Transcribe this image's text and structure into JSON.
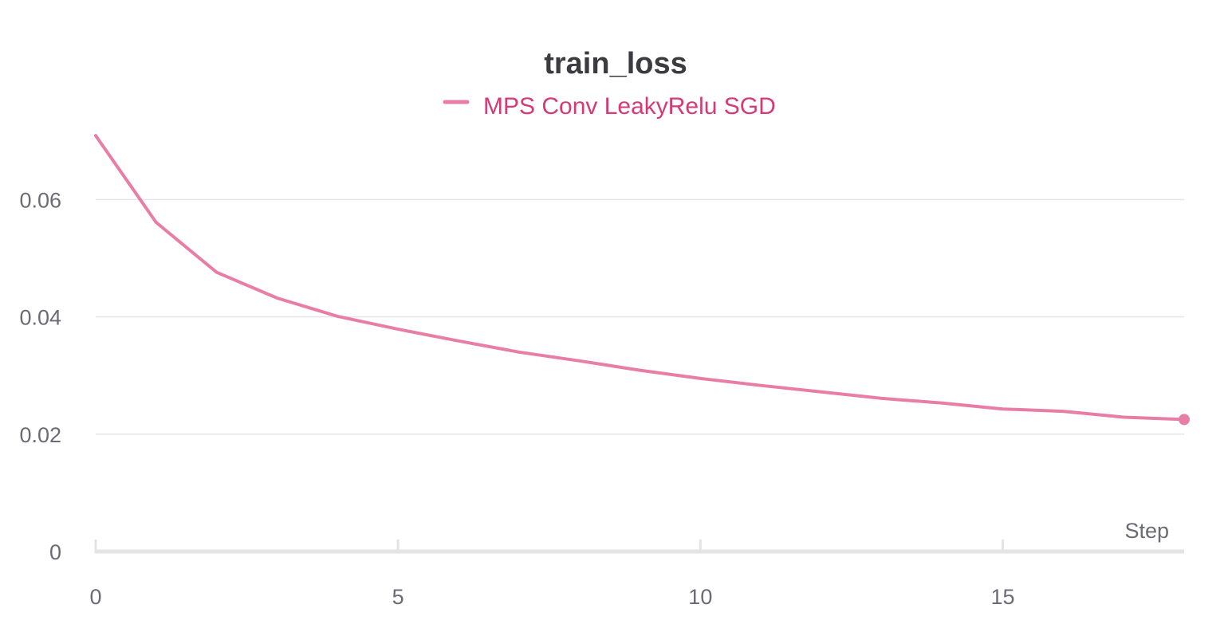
{
  "chart_data": {
    "type": "line",
    "title": "train_loss",
    "xlabel": "Step",
    "ylabel": "",
    "xlim": [
      0,
      18
    ],
    "ylim": [
      0,
      0.074
    ],
    "x_ticks": [
      0,
      5,
      10,
      15
    ],
    "x_tick_labels": [
      "0",
      "5",
      "10",
      "15"
    ],
    "y_ticks": [
      0,
      0.02,
      0.04,
      0.06
    ],
    "y_tick_labels": [
      "0",
      "0.02",
      "0.04",
      "0.06"
    ],
    "grid": true,
    "legend_position": "top-center",
    "series": [
      {
        "name": "MPS Conv LeakyRelu SGD",
        "color": "#e87da6",
        "label_color": "#d63a75",
        "x": [
          0,
          1,
          2,
          3,
          4,
          5,
          6,
          7,
          8,
          9,
          10,
          11,
          12,
          13,
          14,
          15,
          16,
          17,
          18
        ],
        "y": [
          0.0709,
          0.0561,
          0.0476,
          0.0432,
          0.0401,
          0.0379,
          0.0359,
          0.034,
          0.0325,
          0.0309,
          0.0295,
          0.0283,
          0.0272,
          0.0261,
          0.0253,
          0.0243,
          0.0239,
          0.0229,
          0.0225
        ]
      }
    ]
  }
}
